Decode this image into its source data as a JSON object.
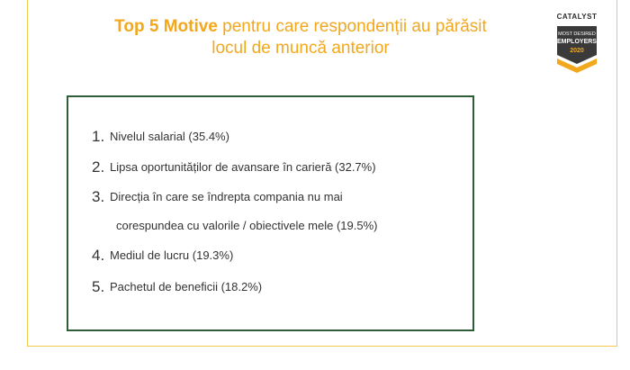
{
  "title": {
    "bold": "Top 5 Motive",
    "rest_line1": " pentru care respondenții au părăsit",
    "line2": "locul de muncă anterior"
  },
  "badge": {
    "brand": "CATALYST",
    "line1": "MOST DESIRED",
    "line2": "EMPLOYERS",
    "year": "2020"
  },
  "list": [
    {
      "num": "1.",
      "text": "Nivelul salarial (35.4%)"
    },
    {
      "num": "2.",
      "text": "Lipsa oportunităților de avansare în carieră (32.7%)"
    },
    {
      "num": "3.",
      "text": "Direcția în care se îndrepta compania nu mai",
      "text2": "corespundea cu valorile / obiectivele mele (19.5%)"
    },
    {
      "num": "4.",
      "text": "Mediul de lucru (19.3%)"
    },
    {
      "num": "5.",
      "text": "Pachetul de beneficii (18.2%)"
    }
  ],
  "colors": {
    "accent": "#f2a81d",
    "frame": "#f2c94c",
    "box_border": "#2f5d3a"
  }
}
